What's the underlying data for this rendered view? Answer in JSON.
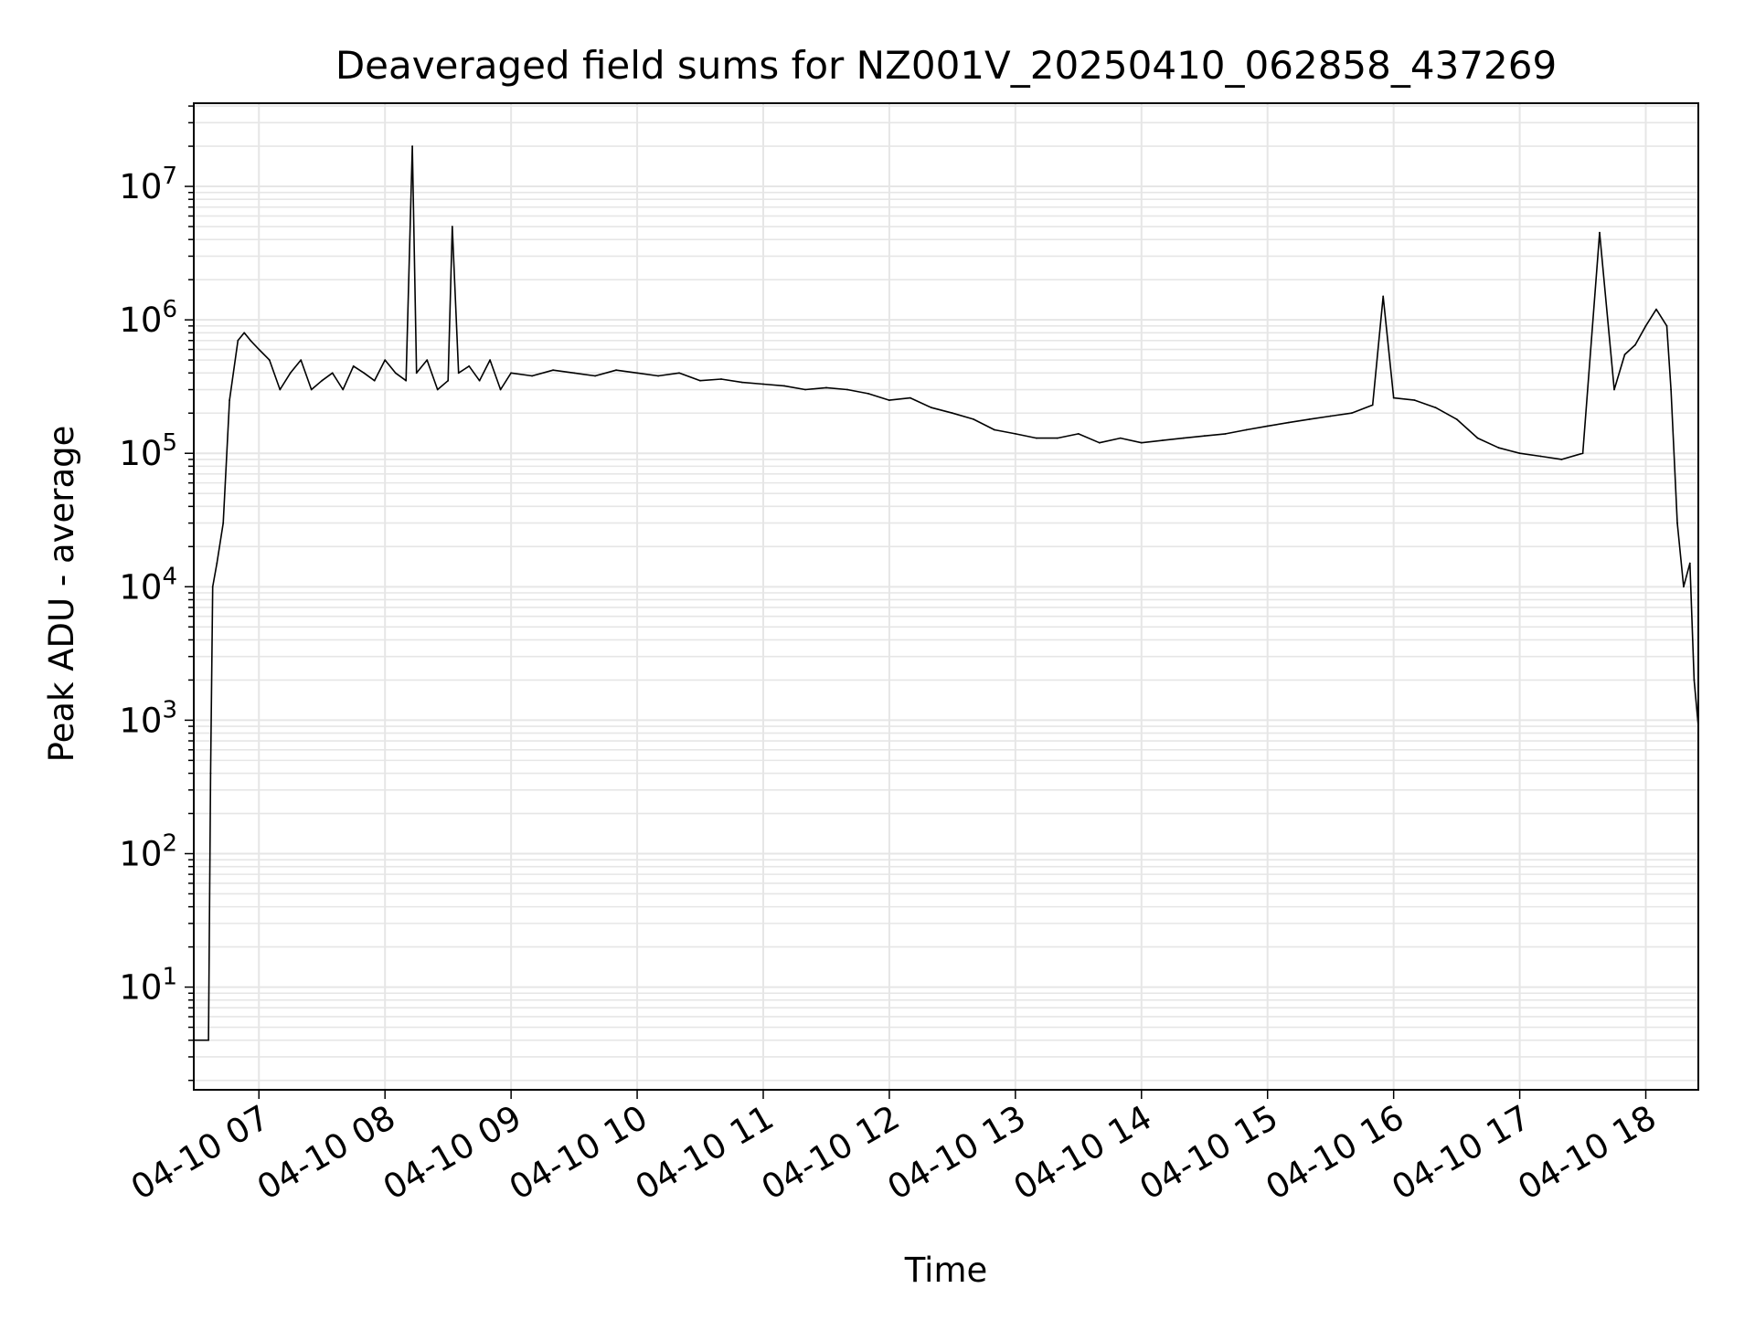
{
  "chart_data": {
    "type": "line",
    "title": "Deaveraged field sums for NZ001V_20250410_062858_437269",
    "xlabel": "Time",
    "ylabel": "Peak ADU - average",
    "yscale": "log",
    "grid": true,
    "legend": "none",
    "line_color": "#000000",
    "grid_color": "#e6e6e6",
    "xlim": [
      "2025-04-10 06:29",
      "2025-04-10 18:25"
    ],
    "ylim": [
      1.7,
      42000000
    ],
    "x_ticks": [
      {
        "value": "2025-04-10 07:00",
        "label": "04-10 07"
      },
      {
        "value": "2025-04-10 08:00",
        "label": "04-10 08"
      },
      {
        "value": "2025-04-10 09:00",
        "label": "04-10 09"
      },
      {
        "value": "2025-04-10 10:00",
        "label": "04-10 10"
      },
      {
        "value": "2025-04-10 11:00",
        "label": "04-10 11"
      },
      {
        "value": "2025-04-10 12:00",
        "label": "04-10 12"
      },
      {
        "value": "2025-04-10 13:00",
        "label": "04-10 13"
      },
      {
        "value": "2025-04-10 14:00",
        "label": "04-10 14"
      },
      {
        "value": "2025-04-10 15:00",
        "label": "04-10 15"
      },
      {
        "value": "2025-04-10 16:00",
        "label": "04-10 16"
      },
      {
        "value": "2025-04-10 17:00",
        "label": "04-10 17"
      },
      {
        "value": "2025-04-10 18:00",
        "label": "04-10 18"
      }
    ],
    "y_ticks": [
      {
        "value": 10,
        "base": "10",
        "exp": "1"
      },
      {
        "value": 100,
        "base": "10",
        "exp": "2"
      },
      {
        "value": 1000,
        "base": "10",
        "exp": "3"
      },
      {
        "value": 10000,
        "base": "10",
        "exp": "4"
      },
      {
        "value": 100000,
        "base": "10",
        "exp": "5"
      },
      {
        "value": 1000000,
        "base": "10",
        "exp": "6"
      },
      {
        "value": 10000000,
        "base": "10",
        "exp": "7"
      }
    ],
    "series": [
      {
        "x": [
          "2025-04-10 06:29",
          "2025-04-10 06:36",
          "2025-04-10 06:37",
          "2025-04-10 06:38",
          "2025-04-10 06:40",
          "2025-04-10 06:43",
          "2025-04-10 06:46",
          "2025-04-10 06:50",
          "2025-04-10 06:53",
          "2025-04-10 06:56",
          "2025-04-10 07:00",
          "2025-04-10 07:05",
          "2025-04-10 07:10",
          "2025-04-10 07:15",
          "2025-04-10 07:20",
          "2025-04-10 07:25",
          "2025-04-10 07:30",
          "2025-04-10 07:35",
          "2025-04-10 07:40",
          "2025-04-10 07:45",
          "2025-04-10 07:50",
          "2025-04-10 07:55",
          "2025-04-10 08:00",
          "2025-04-10 08:05",
          "2025-04-10 08:10",
          "2025-04-10 08:13",
          "2025-04-10 08:15",
          "2025-04-10 08:20",
          "2025-04-10 08:25",
          "2025-04-10 08:30",
          "2025-04-10 08:32",
          "2025-04-10 08:35",
          "2025-04-10 08:40",
          "2025-04-10 08:45",
          "2025-04-10 08:50",
          "2025-04-10 08:55",
          "2025-04-10 09:00",
          "2025-04-10 09:10",
          "2025-04-10 09:20",
          "2025-04-10 09:30",
          "2025-04-10 09:40",
          "2025-04-10 09:50",
          "2025-04-10 10:00",
          "2025-04-10 10:10",
          "2025-04-10 10:20",
          "2025-04-10 10:30",
          "2025-04-10 10:40",
          "2025-04-10 10:50",
          "2025-04-10 11:00",
          "2025-04-10 11:10",
          "2025-04-10 11:20",
          "2025-04-10 11:30",
          "2025-04-10 11:40",
          "2025-04-10 11:50",
          "2025-04-10 12:00",
          "2025-04-10 12:10",
          "2025-04-10 12:20",
          "2025-04-10 12:30",
          "2025-04-10 12:40",
          "2025-04-10 12:50",
          "2025-04-10 13:00",
          "2025-04-10 13:10",
          "2025-04-10 13:20",
          "2025-04-10 13:30",
          "2025-04-10 13:40",
          "2025-04-10 13:50",
          "2025-04-10 14:00",
          "2025-04-10 14:10",
          "2025-04-10 14:20",
          "2025-04-10 14:30",
          "2025-04-10 14:40",
          "2025-04-10 14:50",
          "2025-04-10 15:00",
          "2025-04-10 15:10",
          "2025-04-10 15:20",
          "2025-04-10 15:30",
          "2025-04-10 15:40",
          "2025-04-10 15:50",
          "2025-04-10 15:55",
          "2025-04-10 16:00",
          "2025-04-10 16:10",
          "2025-04-10 16:20",
          "2025-04-10 16:30",
          "2025-04-10 16:40",
          "2025-04-10 16:50",
          "2025-04-10 17:00",
          "2025-04-10 17:10",
          "2025-04-10 17:20",
          "2025-04-10 17:30",
          "2025-04-10 17:38",
          "2025-04-10 17:45",
          "2025-04-10 17:50",
          "2025-04-10 17:55",
          "2025-04-10 18:00",
          "2025-04-10 18:05",
          "2025-04-10 18:10",
          "2025-04-10 18:12",
          "2025-04-10 18:15",
          "2025-04-10 18:18",
          "2025-04-10 18:21",
          "2025-04-10 18:23",
          "2025-04-10 18:25"
        ],
        "y": [
          4,
          4,
          400,
          10000,
          15000,
          30000,
          250000,
          700000,
          800000,
          700000,
          600000,
          500000,
          300000,
          400000,
          500000,
          300000,
          350000,
          400000,
          300000,
          450000,
          400000,
          350000,
          500000,
          400000,
          350000,
          20000000,
          400000,
          500000,
          300000,
          350000,
          5000000,
          400000,
          450000,
          350000,
          500000,
          300000,
          400000,
          380000,
          420000,
          400000,
          380000,
          420000,
          400000,
          380000,
          400000,
          350000,
          360000,
          340000,
          330000,
          320000,
          300000,
          310000,
          300000,
          280000,
          250000,
          260000,
          220000,
          200000,
          180000,
          150000,
          140000,
          130000,
          130000,
          140000,
          120000,
          130000,
          120000,
          125000,
          130000,
          135000,
          140000,
          150000,
          160000,
          170000,
          180000,
          190000,
          200000,
          230000,
          1500000,
          260000,
          250000,
          220000,
          180000,
          130000,
          110000,
          100000,
          95000,
          90000,
          100000,
          4500000,
          300000,
          550000,
          650000,
          900000,
          1200000,
          900000,
          300000,
          30000,
          10000,
          15000,
          2000,
          900
        ]
      }
    ]
  }
}
